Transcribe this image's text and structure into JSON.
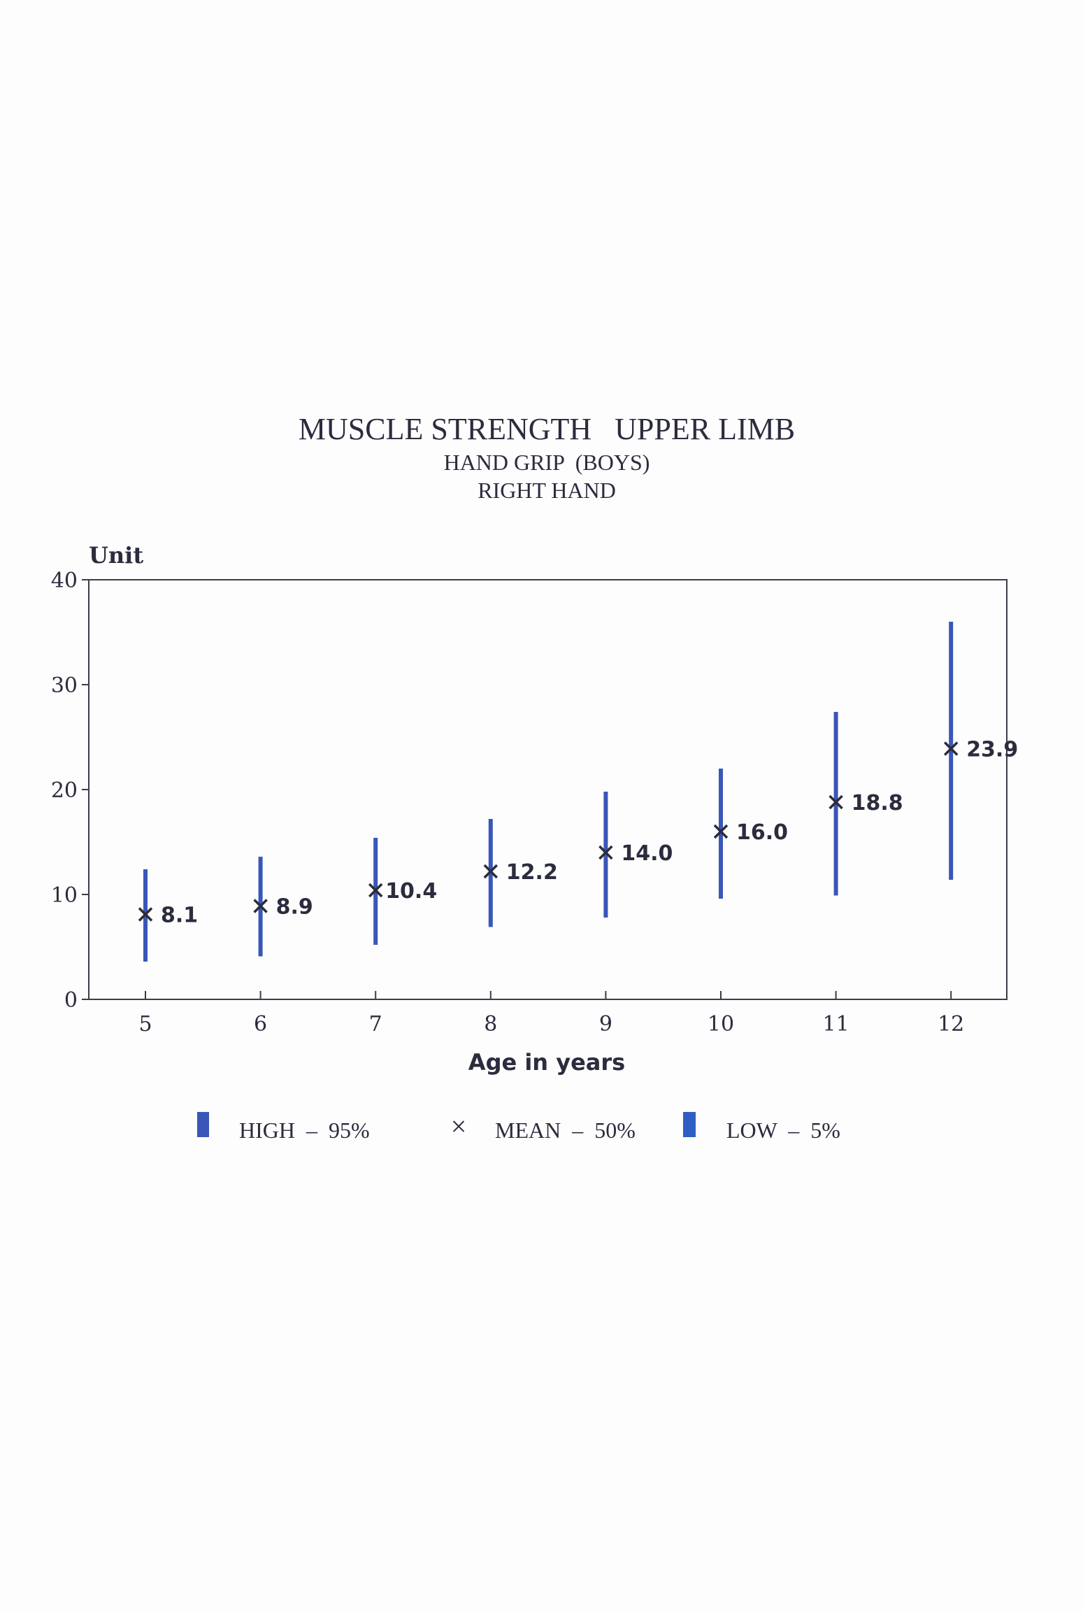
{
  "chart_data": {
    "type": "error-bar",
    "title": "MUSCLE STRENGTH   UPPER LIMB",
    "subtitle": "HAND GRIP  (BOYS)",
    "subtitle2": "RIGHT HAND",
    "ylabel": "Unit",
    "xlabel": "Age in years",
    "ylim": [
      0,
      40
    ],
    "yticks": [
      "0",
      "10",
      "20",
      "30",
      "40"
    ],
    "categories": [
      "5",
      "6",
      "7",
      "8",
      "9",
      "10",
      "11",
      "12"
    ],
    "series": [
      {
        "name": "HIGH - 95%",
        "values": [
          12.4,
          13.6,
          15.4,
          17.2,
          19.8,
          22.0,
          27.4,
          36.0
        ]
      },
      {
        "name": "MEAN - 50%",
        "values": [
          8.1,
          8.9,
          10.4,
          12.2,
          14.0,
          16.0,
          18.8,
          23.9
        ]
      },
      {
        "name": "LOW - 5%",
        "values": [
          3.6,
          4.1,
          5.2,
          6.9,
          7.8,
          9.6,
          9.9,
          11.4
        ]
      }
    ],
    "data_labels": [
      "8.1",
      "8.9",
      "10.4",
      "12.2",
      "14.0",
      "16.0",
      "18.8",
      "23.9"
    ],
    "colors": {
      "bar": "#3a56b8",
      "text": "#2b2c3d",
      "axis": "#3b3b4a"
    }
  },
  "legend": {
    "high": "HIGH  –  95%",
    "mean": "MEAN  –  50%",
    "low": "LOW  –  5%",
    "mean_marker": "×"
  }
}
